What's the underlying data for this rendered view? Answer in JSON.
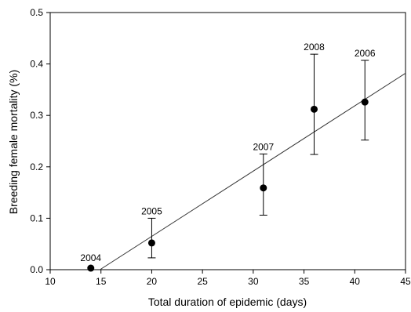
{
  "chart_data": {
    "type": "scatter",
    "title": "",
    "xlabel": "Total duration of epidemic (days)",
    "ylabel": "Breeding female mortality (%)",
    "xlim": [
      10,
      45
    ],
    "ylim": [
      0.0,
      0.5
    ],
    "x_ticks": [
      10,
      15,
      20,
      25,
      30,
      35,
      40,
      45
    ],
    "y_ticks": [
      0.0,
      0.1,
      0.2,
      0.3,
      0.4,
      0.5
    ],
    "y_tick_labels": [
      "0.0",
      "0.1",
      "0.2",
      "0.3",
      "0.4",
      "0.5"
    ],
    "grid": false,
    "legend": "none",
    "points": [
      {
        "label": "2004",
        "x": 14,
        "y": 0.003,
        "err_low": null,
        "err_high": null
      },
      {
        "label": "2005",
        "x": 20,
        "y": 0.052,
        "err_low": 0.023,
        "err_high": 0.1
      },
      {
        "label": "2007",
        "x": 31,
        "y": 0.159,
        "err_low": 0.106,
        "err_high": 0.225
      },
      {
        "label": "2008",
        "x": 36,
        "y": 0.312,
        "err_low": 0.224,
        "err_high": 0.419
      },
      {
        "label": "2006",
        "x": 41,
        "y": 0.326,
        "err_low": 0.252,
        "err_high": 0.407
      }
    ],
    "regression_line": {
      "x_start": 14.9,
      "y_start": 0.0,
      "x_end": 45,
      "y_end": 0.382
    },
    "colors": {
      "marker": "#000000",
      "line": "#333333",
      "axis": "#000000"
    }
  }
}
